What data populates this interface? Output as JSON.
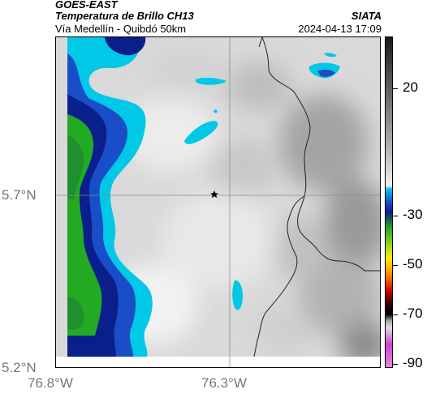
{
  "header": {
    "satellite": "GOES-EAST",
    "product": "Temperatura de Brillo CH13",
    "route": "Vía Medellín - Quibdó 50km",
    "org": "SIATA",
    "datetime": "2024-04-13 17:09"
  },
  "axes": {
    "lat_labels": [
      "5.7°N",
      "5.2°N"
    ],
    "lon_labels": [
      "76.8°W",
      "76.3°W"
    ]
  },
  "colorbar": {
    "labels": [
      "20",
      "-30",
      "-50",
      "-70",
      "-90"
    ],
    "colors": {
      "top": "#1a1a1a",
      "gray_light": "#f0f0f0",
      "cyan": "#00c8e6",
      "blue": "#0a1e8c",
      "green": "#22aa22",
      "yellow": "#ffee00",
      "orange": "#ff8800",
      "red": "#cc0000",
      "black": "#000000",
      "magenta": "#cc44cc"
    }
  },
  "map": {
    "marker_icon": "star-icon"
  }
}
